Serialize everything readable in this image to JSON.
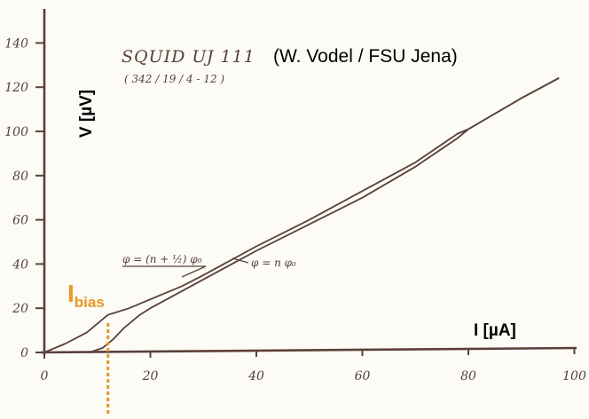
{
  "chart_data": {
    "type": "line",
    "title": "SQUID  UJ 111",
    "subtitle": "( 342 / 19 / 4 - 12 )",
    "attribution": "(W. Vodel / FSU Jena)",
    "xlabel": "I [µA]",
    "ylabel": "V [µV]",
    "xlim": [
      0,
      100
    ],
    "ylim": [
      0,
      150
    ],
    "x_ticks": [
      "0",
      "20",
      "40",
      "60",
      "80",
      "100"
    ],
    "y_ticks": [
      "0",
      "20",
      "40",
      "60",
      "80",
      "100",
      "120",
      "140"
    ],
    "series": [
      {
        "name": "φ = (n + ½) φ₀",
        "color": "#5a4038",
        "points": [
          [
            0,
            0
          ],
          [
            4,
            4
          ],
          [
            8,
            9
          ],
          [
            10,
            13
          ],
          [
            12,
            17
          ],
          [
            16,
            20
          ],
          [
            20,
            24
          ],
          [
            26,
            30
          ],
          [
            30,
            35
          ],
          [
            40,
            48
          ],
          [
            50,
            60
          ],
          [
            60,
            73
          ],
          [
            70,
            86
          ],
          [
            78,
            99
          ],
          [
            80,
            101
          ],
          [
            90,
            115
          ],
          [
            97,
            124
          ]
        ]
      },
      {
        "name": "φ = n φ₀",
        "color": "#5a4038",
        "points": [
          [
            8.5,
            0
          ],
          [
            11,
            2
          ],
          [
            13,
            6
          ],
          [
            15,
            11
          ],
          [
            18,
            17
          ],
          [
            20,
            20
          ],
          [
            30,
            33
          ],
          [
            40,
            46
          ],
          [
            50,
            58
          ],
          [
            60,
            70
          ],
          [
            70,
            84
          ],
          [
            78,
            97
          ],
          [
            80,
            101
          ],
          [
            90,
            115
          ],
          [
            97,
            124
          ]
        ]
      }
    ],
    "annotations": [
      {
        "text": "φ = (n + ½) φ₀",
        "target_series": 0
      },
      {
        "text": "φ = n φ₀",
        "target_series": 1
      }
    ],
    "ibias": {
      "label_main": "I",
      "label_sub": "bias",
      "x": 12,
      "color": "#f0961e"
    },
    "grid": false
  }
}
